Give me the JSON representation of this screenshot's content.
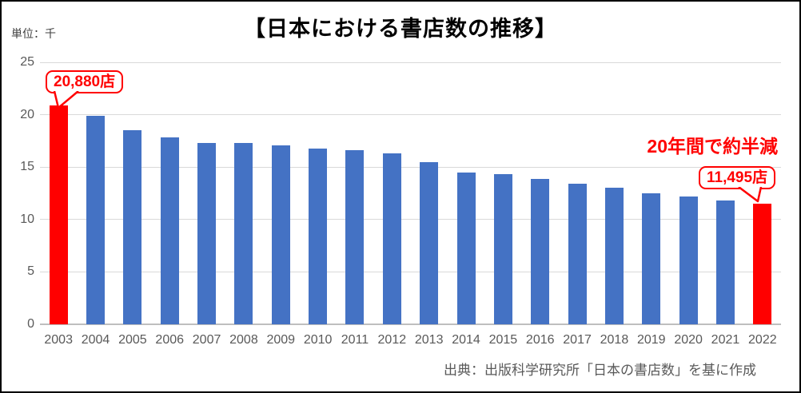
{
  "header": {
    "unit_label": "単位：千",
    "title": "【日本における書店数の推移】"
  },
  "annotations": {
    "peak_callout": "20,880店",
    "latest_callout": "11,495店",
    "trend_note": "20年間で約半減"
  },
  "footer": {
    "source": "出典：出版科学研究所「日本の書店数」を基に作成"
  },
  "colors": {
    "bar": "#4472C4",
    "highlight": "#FF0000",
    "gridline": "#D9D9D9",
    "axis_line": "#BFBFBF",
    "tick_label": "#595959"
  },
  "chart_data": {
    "type": "bar",
    "title": "【日本における書店数の推移】",
    "unit": "千 (thousand stores)",
    "categories": [
      "2003",
      "2004",
      "2005",
      "2006",
      "2007",
      "2008",
      "2009",
      "2010",
      "2011",
      "2012",
      "2013",
      "2014",
      "2015",
      "2016",
      "2017",
      "2018",
      "2019",
      "2020",
      "2021",
      "2022"
    ],
    "values": [
      20.88,
      19.9,
      18.5,
      17.8,
      17.3,
      17.3,
      17.1,
      16.8,
      16.6,
      16.3,
      15.5,
      14.5,
      14.3,
      13.9,
      13.4,
      13.0,
      12.5,
      12.2,
      11.8,
      11.495
    ],
    "highlight_categories": [
      "2003",
      "2022"
    ],
    "data_labels": {
      "2003": "20,880店",
      "2022": "11,495店"
    },
    "ylim": [
      0,
      25
    ],
    "yticks": [
      0,
      5,
      10,
      15,
      20,
      25
    ],
    "grid": true,
    "legend": false
  }
}
